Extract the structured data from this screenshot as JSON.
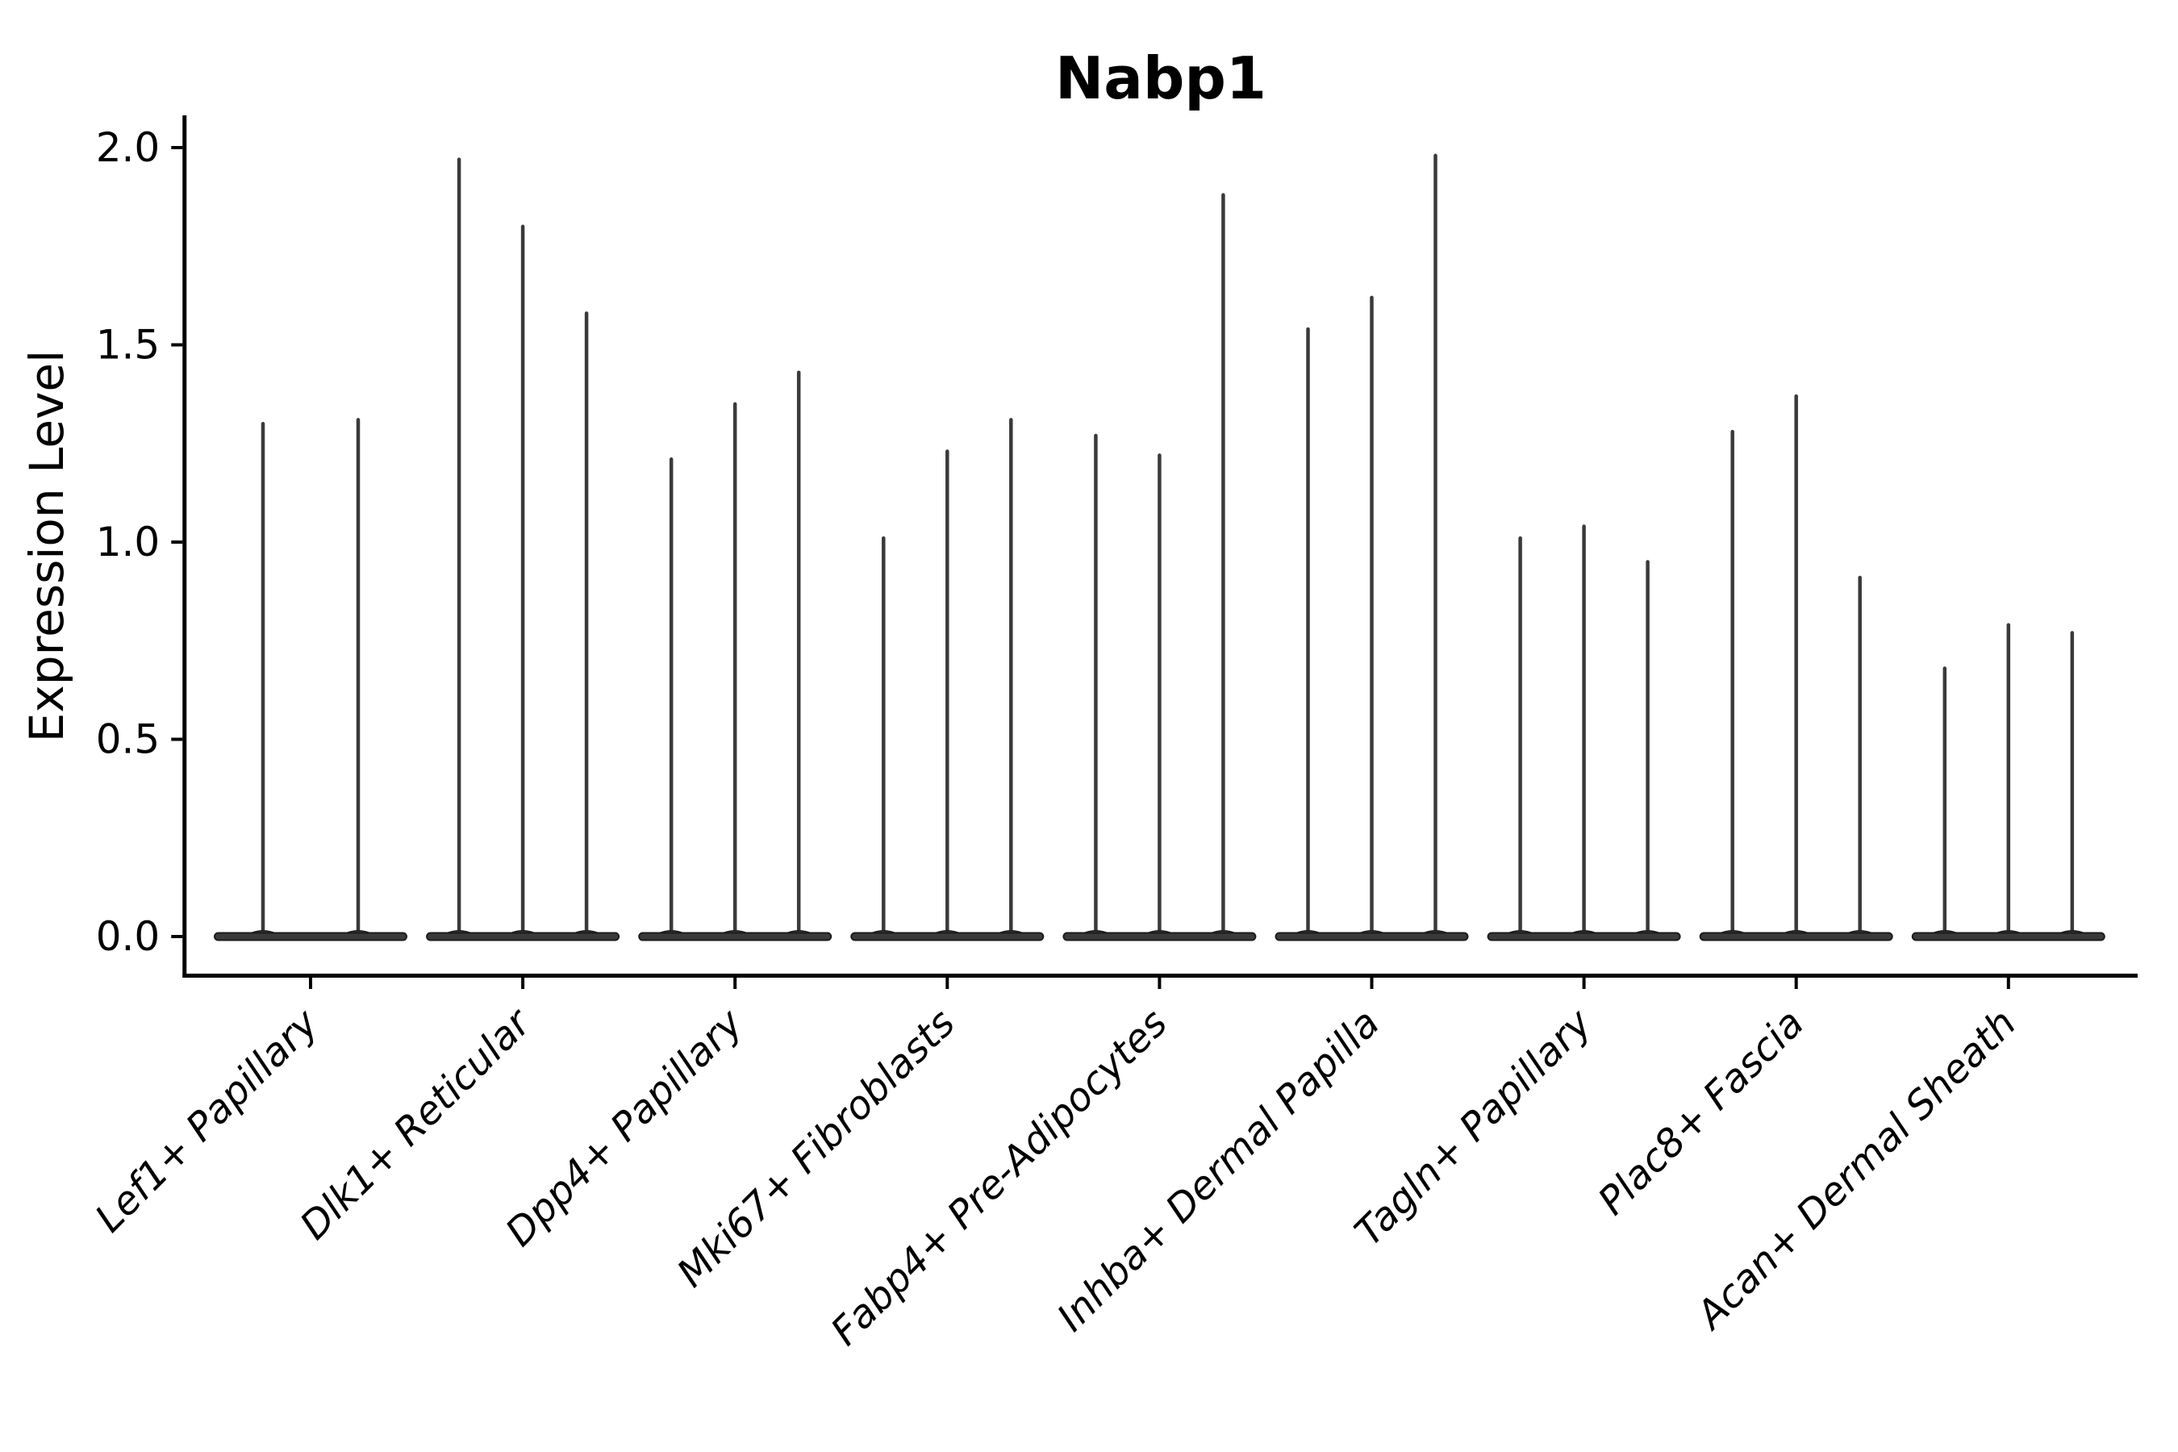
{
  "title": "Nabp1",
  "chart_data": {
    "type": "violin",
    "title": "Nabp1",
    "xlabel": "",
    "ylabel": "Expression Level",
    "ylim": [
      -0.1,
      2.08
    ],
    "ytick_values": [
      0.0,
      0.5,
      1.0,
      1.5,
      2.0
    ],
    "ytick_labels": [
      "0.0",
      "0.5",
      "1.0",
      "1.5",
      "2.0"
    ],
    "grid": false,
    "legend": "none",
    "violin_description": "Each cell type shows 2-3 very thin violins; nearly all density mass sits in a wide flat blob at expression 0, with a hair-thin tail rising to the maximum expression value listed in values[]",
    "violin_min": 0.0,
    "categories": [
      "Lef1+ Papillary",
      "Dlk1+ Reticular",
      "Dpp4+ Papillary",
      "Mki67+ Fibroblasts",
      "Fabp4+ Pre-Adipocytes",
      "Inhba+ Dermal Papilla",
      "Tagln+ Papillary",
      "Plac8+ Fascia",
      "Acan+ Dermal Sheath"
    ],
    "series": [
      {
        "category": "Lef1+ Papillary",
        "values": [
          1.3,
          1.31
        ]
      },
      {
        "category": "Dlk1+ Reticular",
        "values": [
          1.97,
          1.8,
          1.58
        ]
      },
      {
        "category": "Dpp4+ Papillary",
        "values": [
          1.21,
          1.35,
          1.43
        ]
      },
      {
        "category": "Mki67+ Fibroblasts",
        "values": [
          1.01,
          1.23,
          1.31
        ]
      },
      {
        "category": "Fabp4+ Pre-Adipocytes",
        "values": [
          1.27,
          1.22,
          1.88
        ]
      },
      {
        "category": "Inhba+ Dermal Papilla",
        "values": [
          1.54,
          1.62,
          1.98
        ]
      },
      {
        "category": "Tagln+ Papillary",
        "values": [
          1.01,
          1.04,
          0.95
        ]
      },
      {
        "category": "Plac8+ Fascia",
        "values": [
          1.28,
          1.37,
          0.91
        ]
      },
      {
        "category": "Acan+ Dermal Sheath",
        "values": [
          0.68,
          0.79,
          0.77
        ]
      }
    ]
  },
  "style": {
    "background": "#ffffff",
    "violin_fill": "#3a3a3a",
    "violin_edge": "#1c1c1c",
    "axis_color": "#000000",
    "text_color": "#000000"
  }
}
